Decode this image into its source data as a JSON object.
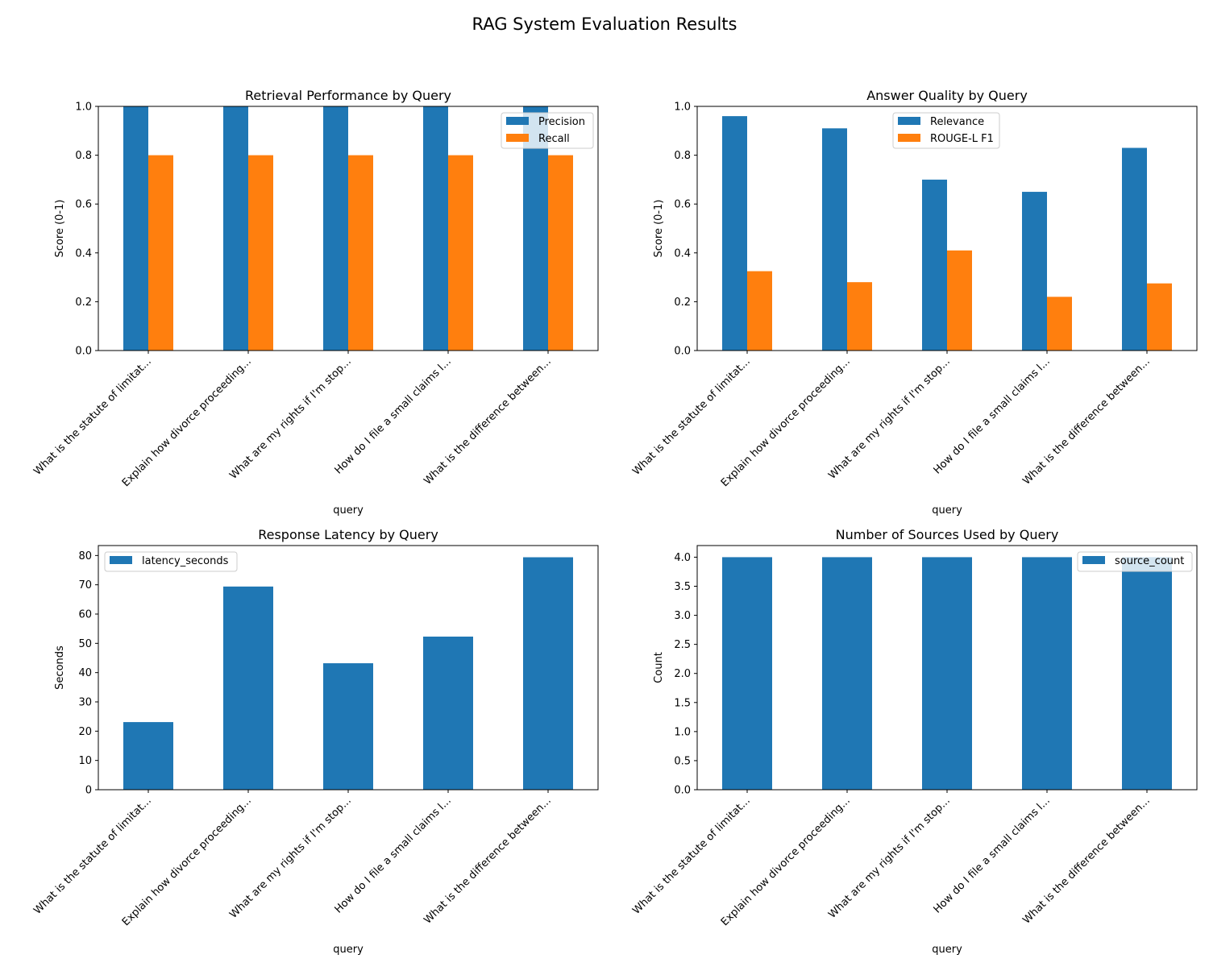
{
  "figure": {
    "suptitle": "RAG System Evaluation Results"
  },
  "colors": {
    "blue": "#1f77b4",
    "orange": "#ff7f0e"
  },
  "chart_data": [
    {
      "type": "bar",
      "title": "Retrieval Performance by Query",
      "xlabel": "query",
      "ylabel": "Score (0-1)",
      "ylim": [
        0,
        1.0
      ],
      "yticks": [
        "0.0",
        "0.2",
        "0.4",
        "0.6",
        "0.8",
        "1.0"
      ],
      "ytick_values": [
        0,
        0.2,
        0.4,
        0.6,
        0.8,
        1.0
      ],
      "legend_position": "upper right",
      "categories": [
        "What is the statute of limitat...",
        "Explain how divorce proceeding...",
        "What are my rights if I'm stop...",
        "How do I file a small claims l...",
        "What is the difference between..."
      ],
      "series": [
        {
          "name": "Precision",
          "color": "#1f77b4",
          "values": [
            1.0,
            1.0,
            1.0,
            1.0,
            1.0
          ]
        },
        {
          "name": "Recall",
          "color": "#ff7f0e",
          "values": [
            0.8,
            0.8,
            0.8,
            0.8,
            0.8
          ]
        }
      ]
    },
    {
      "type": "bar",
      "title": "Answer Quality by Query",
      "xlabel": "query",
      "ylabel": "Score (0-1)",
      "ylim": [
        0,
        1.0
      ],
      "yticks": [
        "0.0",
        "0.2",
        "0.4",
        "0.6",
        "0.8",
        "1.0"
      ],
      "ytick_values": [
        0,
        0.2,
        0.4,
        0.6,
        0.8,
        1.0
      ],
      "legend_position": "upper center",
      "categories": [
        "What is the statute of limitat...",
        "Explain how divorce proceeding...",
        "What are my rights if I'm stop...",
        "How do I file a small claims l...",
        "What is the difference between..."
      ],
      "series": [
        {
          "name": "Relevance",
          "color": "#1f77b4",
          "values": [
            0.96,
            0.91,
            0.7,
            0.65,
            0.83
          ]
        },
        {
          "name": "ROUGE-L F1",
          "color": "#ff7f0e",
          "values": [
            0.325,
            0.28,
            0.41,
            0.22,
            0.275
          ]
        }
      ]
    },
    {
      "type": "bar",
      "title": "Response Latency by Query",
      "xlabel": "query",
      "ylabel": "Seconds",
      "ylim": [
        0,
        83.4
      ],
      "yticks": [
        "0",
        "10",
        "20",
        "30",
        "40",
        "50",
        "60",
        "70",
        "80"
      ],
      "ytick_values": [
        0,
        10,
        20,
        30,
        40,
        50,
        60,
        70,
        80
      ],
      "legend_position": "upper left",
      "categories": [
        "What is the statute of limitat...",
        "Explain how divorce proceeding...",
        "What are my rights if I'm stop...",
        "How do I file a small claims l...",
        "What is the difference between..."
      ],
      "series": [
        {
          "name": "latency_seconds",
          "color": "#1f77b4",
          "values": [
            23.1,
            69.4,
            43.2,
            52.3,
            79.4
          ]
        }
      ]
    },
    {
      "type": "bar",
      "title": "Number of Sources Used by Query",
      "xlabel": "query",
      "ylabel": "Count",
      "ylim": [
        0,
        4.2
      ],
      "yticks": [
        "0.0",
        "0.5",
        "1.0",
        "1.5",
        "2.0",
        "2.5",
        "3.0",
        "3.5",
        "4.0"
      ],
      "ytick_values": [
        0,
        0.5,
        1.0,
        1.5,
        2.0,
        2.5,
        3.0,
        3.5,
        4.0
      ],
      "legend_position": "upper right",
      "categories": [
        "What is the statute of limitat...",
        "Explain how divorce proceeding...",
        "What are my rights if I'm stop...",
        "How do I file a small claims l...",
        "What is the difference between..."
      ],
      "series": [
        {
          "name": "source_count",
          "color": "#1f77b4",
          "values": [
            4,
            4,
            4,
            4,
            4
          ]
        }
      ]
    }
  ]
}
